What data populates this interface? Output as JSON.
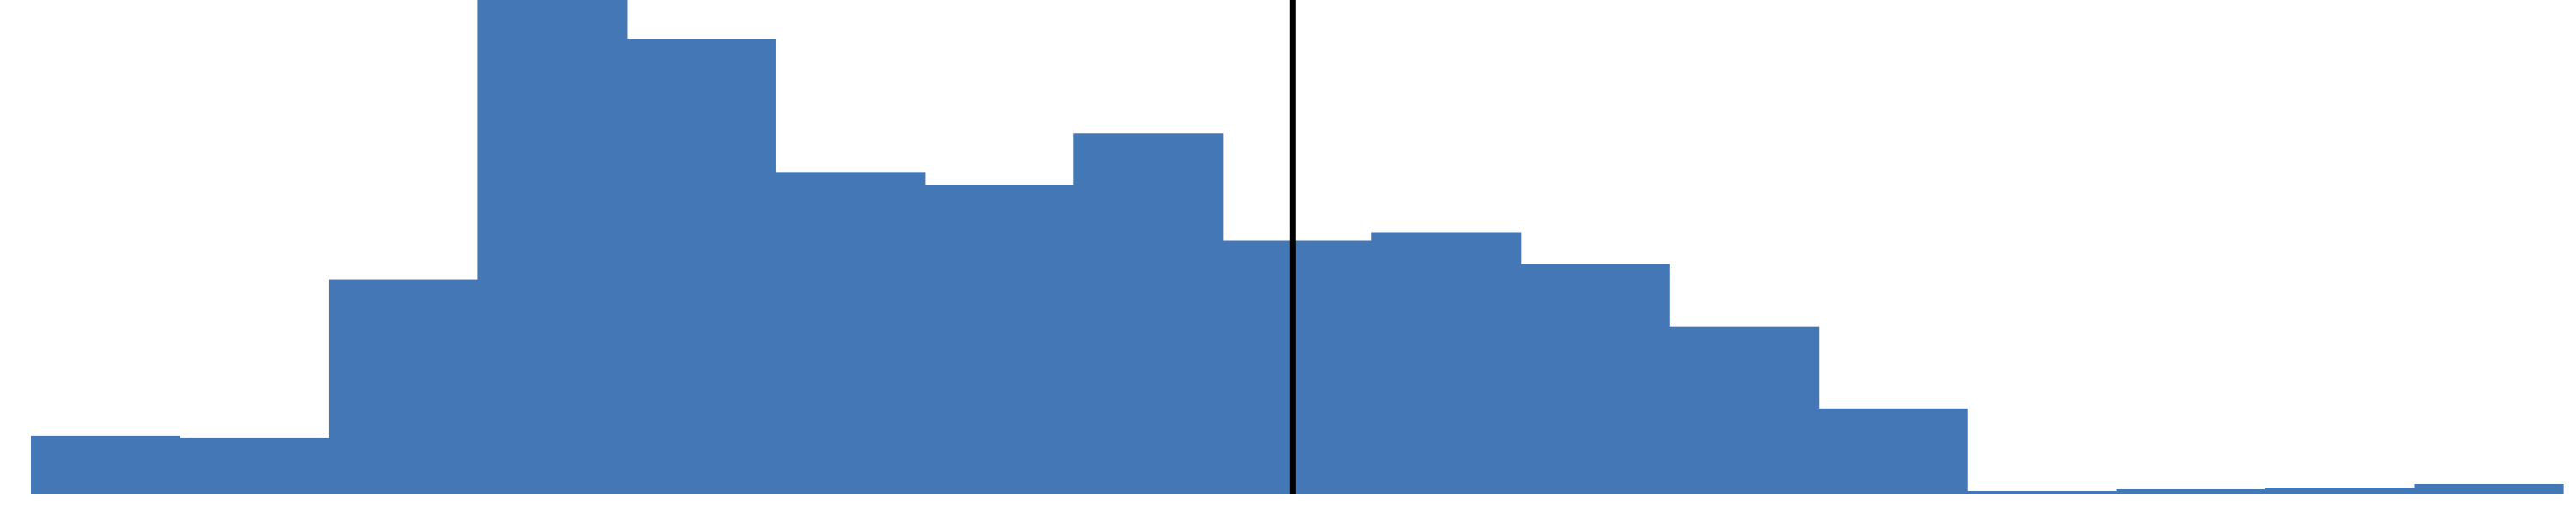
{
  "chart_data": {
    "type": "bar",
    "bar_color": "#4477b6",
    "marker_color": "#000000",
    "bins": 17,
    "values": [
      68,
      66,
      250,
      575,
      530,
      375,
      360,
      420,
      295,
      305,
      268,
      195,
      100,
      4,
      6,
      8,
      12
    ],
    "ylim": [
      0,
      575
    ],
    "vline_bin_position": 8.47,
    "title": "",
    "xlabel": "",
    "ylabel": "",
    "grid": false,
    "legend": false
  }
}
